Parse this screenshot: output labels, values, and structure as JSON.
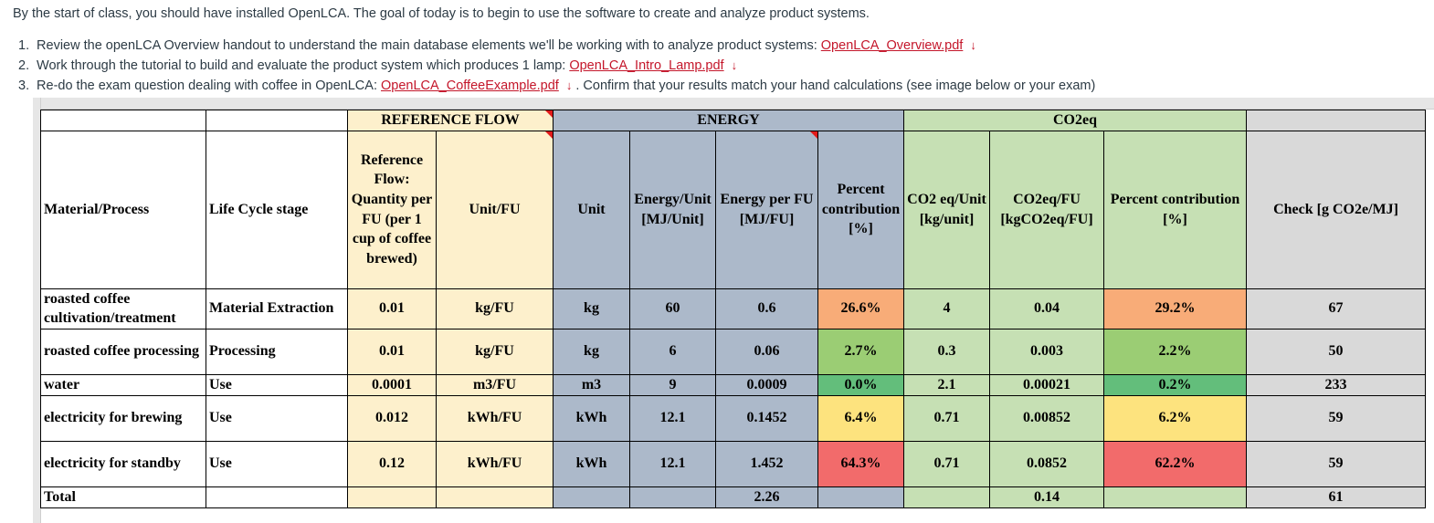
{
  "intro": "By the start of class, you should have installed OpenLCA. The goal of today is to begin to use the software to create and analyze product systems.",
  "steps": [
    {
      "num": "1.",
      "before": "Review the openLCA Overview handout to understand the main database elements we'll be working with to analyze product systems:",
      "link": "OpenLCA_Overview.pdf",
      "after": ""
    },
    {
      "num": "2.",
      "before": "Work through the tutorial to build and evaluate the product system which produces 1 lamp:",
      "link": "OpenLCA_Intro_Lamp.pdf",
      "after": ""
    },
    {
      "num": "3.",
      "before": "Re-do the exam question dealing with coffee in OpenLCA:",
      "link": "OpenLCA_CoffeeExample.pdf",
      "after": ". Confirm that your results match your hand calculations (see image below or your exam)"
    }
  ],
  "download_glyph": "↓",
  "colors": {
    "link": "#c4162a",
    "ref_flow": "#fdf0cc",
    "energy": "#acb9ca",
    "co2": "#c6e0b4",
    "check": "#d9d9d9"
  },
  "table": {
    "groups": {
      "reference_flow": "REFERENCE FLOW",
      "energy": "ENERGY",
      "co2": "CO2eq"
    },
    "headers": {
      "material": "Material/Process",
      "stage": "Life Cycle stage",
      "ref_qty": "Reference Flow: Quantity per FU (per 1 cup of coffee brewed)",
      "unit_fu": "Unit/FU",
      "unit": "Unit",
      "energy_unit": "Energy/Unit [MJ/Unit]",
      "energy_fu": "Energy per FU [MJ/FU]",
      "energy_pct": "Percent contribution [%]",
      "co2_unit": "CO2 eq/Unit [kg/unit]",
      "co2_fu": "CO2eq/FU [kgCO2eq/FU]",
      "co2_pct": "Percent contribution [%]",
      "check": "Check [g CO2e/MJ]"
    },
    "rows": [
      {
        "material": "roasted coffee cultivation/treatment",
        "stage": "Material Extraction",
        "qty": "0.01",
        "unit_fu": "kg/FU",
        "unit": "kg",
        "e_unit": "60",
        "e_fu": "0.6",
        "e_pct": "26.6%",
        "e_color": "#f8ac78",
        "c_unit": "4",
        "c_fu": "0.04",
        "c_pct": "29.2%",
        "c_color": "#f8ac78",
        "check": "67"
      },
      {
        "material": "roasted coffee processing",
        "stage": "Processing",
        "qty": "0.01",
        "unit_fu": "kg/FU",
        "unit": "kg",
        "e_unit": "6",
        "e_fu": "0.06",
        "e_pct": "2.7%",
        "e_color": "#9bcd74",
        "c_unit": "0.3",
        "c_fu": "0.003",
        "c_pct": "2.2%",
        "c_color": "#9bcd74",
        "check": "50"
      },
      {
        "material": "water",
        "stage": "Use",
        "qty": "0.0001",
        "unit_fu": "m3/FU",
        "unit": "m3",
        "e_unit": "9",
        "e_fu": "0.0009",
        "e_pct": "0.0%",
        "e_color": "#63be7b",
        "c_unit": "2.1",
        "c_fu": "0.00021",
        "c_pct": "0.2%",
        "c_color": "#63be7b",
        "check": "233"
      },
      {
        "material": "electricity for brewing",
        "stage": "Use",
        "qty": "0.012",
        "unit_fu": "kWh/FU",
        "unit": "kWh",
        "e_unit": "12.1",
        "e_fu": "0.1452",
        "e_pct": "6.4%",
        "e_color": "#fde37e",
        "c_unit": "0.71",
        "c_fu": "0.00852",
        "c_pct": "6.2%",
        "c_color": "#fde37e",
        "check": "59"
      },
      {
        "material": "electricity for standby",
        "stage": "Use",
        "qty": "0.12",
        "unit_fu": "kWh/FU",
        "unit": "kWh",
        "e_unit": "12.1",
        "e_fu": "1.452",
        "e_pct": "64.3%",
        "e_color": "#f26b6b",
        "c_unit": "0.71",
        "c_fu": "0.0852",
        "c_pct": "62.2%",
        "c_color": "#f26b6b",
        "check": "59"
      }
    ],
    "total": {
      "label": "Total",
      "e_fu": "2.26",
      "c_fu": "0.14",
      "check": "61"
    }
  }
}
